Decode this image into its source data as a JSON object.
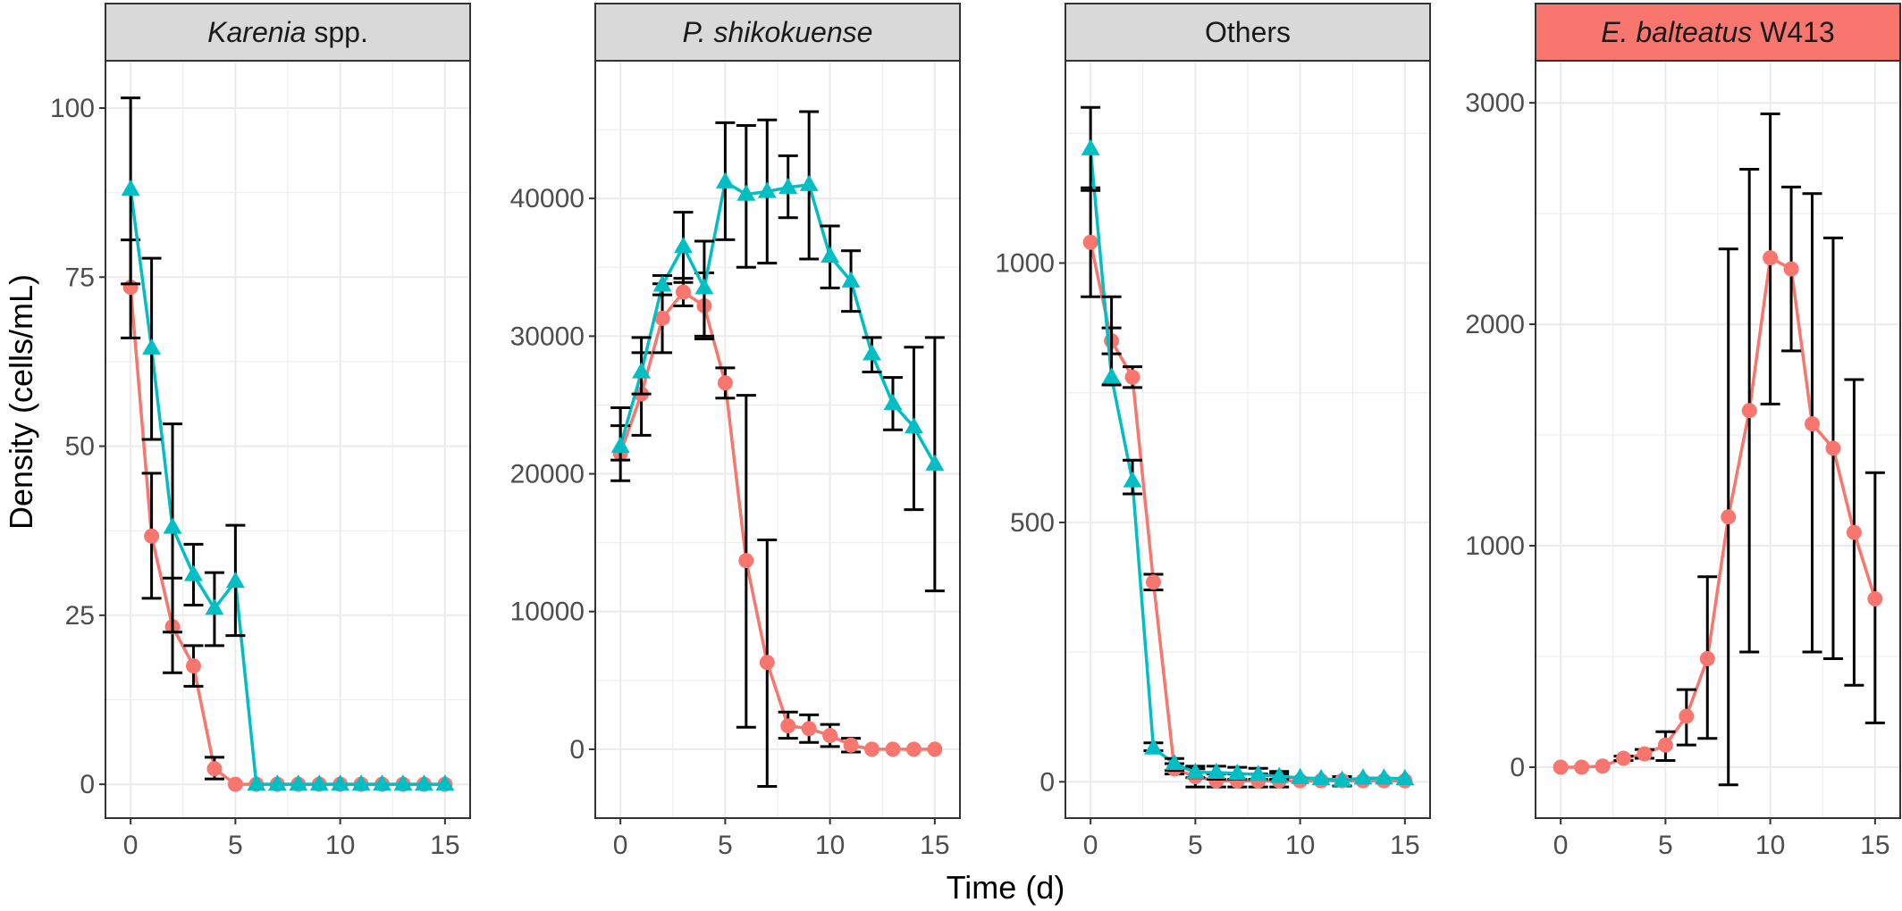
{
  "chart_data": {
    "type": "line",
    "xlabel": "Time (d)",
    "ylabel": "Density (cells/mL)",
    "colors": {
      "treatment": "#F8766D",
      "control": "#00BFC4",
      "error_bar": "#000000",
      "strip_default": "#D9D9D9",
      "strip_highlight": "#F8766D"
    },
    "panels": [
      {
        "strip_parts": [
          {
            "text": "Karenia",
            "italic": true
          },
          {
            "text": " spp.",
            "italic": false
          }
        ],
        "strip_fill": "#D9D9D9",
        "ylim": [
          -5,
          107
        ],
        "yticks": [
          0,
          25,
          50,
          75,
          100
        ],
        "xlim": [
          -1.2,
          16.2
        ],
        "xticks": [
          0,
          5,
          10,
          15
        ],
        "series": [
          {
            "key": "treatment",
            "x": [
              0,
              1,
              2,
              3,
              4,
              5,
              6,
              7,
              8,
              9,
              10,
              11,
              12,
              13,
              14,
              15
            ],
            "y": [
              73.5,
              36.7,
              23.3,
              17.5,
              2.3,
              0,
              0,
              0,
              0,
              0,
              0,
              0,
              0,
              0,
              0,
              0
            ],
            "err_low": [
              66,
              27.5,
              16.5,
              14.5,
              0.8,
              null,
              null,
              null,
              null,
              null,
              null,
              null,
              null,
              null,
              null,
              null
            ],
            "err_high": [
              80.5,
              46,
              30.5,
              20.5,
              4,
              null,
              null,
              null,
              null,
              null,
              null,
              null,
              null,
              null,
              null,
              null
            ]
          },
          {
            "key": "control",
            "x": [
              0,
              1,
              2,
              3,
              4,
              5,
              6,
              7,
              8,
              9,
              10,
              11,
              12,
              13,
              14,
              15
            ],
            "y": [
              88,
              64.5,
              38,
              31,
              26,
              30,
              0,
              0,
              0,
              0,
              0,
              0,
              0,
              0,
              0,
              0
            ],
            "err_low": [
              74,
              51,
              22.5,
              26.5,
              20.5,
              22,
              null,
              null,
              null,
              null,
              null,
              null,
              null,
              null,
              null,
              null
            ],
            "err_high": [
              101.5,
              77.8,
              53.3,
              35.5,
              31.3,
              38.3,
              null,
              null,
              null,
              null,
              null,
              null,
              null,
              null,
              null,
              null
            ]
          }
        ]
      },
      {
        "strip_parts": [
          {
            "text": "P.  shikokuense",
            "italic": true
          }
        ],
        "strip_fill": "#D9D9D9",
        "ylim": [
          -5000,
          50000
        ],
        "yticks": [
          0,
          10000,
          20000,
          30000,
          40000
        ],
        "xlim": [
          -1.2,
          16.2
        ],
        "xticks": [
          0,
          5,
          10,
          15
        ],
        "series": [
          {
            "key": "treatment",
            "x": [
              0,
              1,
              2,
              3,
              4,
              5,
              6,
              7,
              8,
              9,
              10,
              11,
              12,
              13,
              14,
              15
            ],
            "y": [
              21500,
              25800,
              31300,
              33200,
              32200,
              26600,
              13700,
              6300,
              1700,
              1500,
              1000,
              300,
              0,
              0,
              0,
              0
            ],
            "err_low": [
              19500,
              22800,
              28800,
              32200,
              29800,
              25500,
              1600,
              -2700,
              800,
              500,
              200,
              -200,
              null,
              null,
              null,
              null
            ],
            "err_high": [
              23500,
              28800,
              33800,
              34200,
              34600,
              27700,
              25700,
              15200,
              2700,
              2500,
              1800,
              800,
              null,
              null,
              null,
              null
            ]
          },
          {
            "key": "control",
            "x": [
              0,
              1,
              2,
              3,
              4,
              5,
              6,
              7,
              8,
              9,
              10,
              11,
              12,
              13,
              14,
              15
            ],
            "y": [
              22000,
              27400,
              33700,
              36500,
              33500,
              41200,
              40300,
              40500,
              40800,
              41000,
              35800,
              34000,
              28700,
              25100,
              23400,
              20700
            ],
            "err_low": [
              21000,
              25800,
              33000,
              33900,
              30000,
              37000,
              35000,
              35300,
              38600,
              35600,
              33500,
              31800,
              27400,
              23200,
              17400,
              11500
            ],
            "err_high": [
              24800,
              29900,
              34400,
              39000,
              36900,
              45500,
              45300,
              45700,
              43100,
              46300,
              38000,
              36200,
              29900,
              27000,
              29200,
              29900
            ]
          }
        ]
      },
      {
        "strip_parts": [
          {
            "text": "Others",
            "italic": false
          }
        ],
        "strip_fill": "#D9D9D9",
        "ylim": [
          -70,
          1390
        ],
        "yticks": [
          0,
          500,
          1000
        ],
        "xlim": [
          -1.2,
          16.2
        ],
        "xticks": [
          0,
          5,
          10,
          15
        ],
        "series": [
          {
            "key": "treatment",
            "x": [
              0,
              1,
              2,
              3,
              4,
              5,
              6,
              7,
              8,
              9,
              10,
              11,
              12,
              13,
              14,
              15
            ],
            "y": [
              1040,
              850,
              780,
              385,
              25,
              10,
              2,
              2,
              2,
              2,
              2,
              2,
              2,
              2,
              2,
              2
            ],
            "err_low": [
              935,
              825,
              760,
              370,
              15,
              -10,
              -10,
              -10,
              -10,
              -10,
              null,
              null,
              -8,
              null,
              null,
              null
            ],
            "err_high": [
              1145,
              875,
              800,
              400,
              35,
              25,
              15,
              15,
              15,
              15,
              null,
              null,
              10,
              null,
              null,
              null
            ]
          },
          {
            "key": "control",
            "x": [
              0,
              1,
              2,
              3,
              4,
              5,
              6,
              7,
              8,
              9,
              10,
              11,
              12,
              13,
              14,
              15
            ],
            "y": [
              1220,
              780,
              580,
              65,
              35,
              18,
              18,
              16,
              14,
              10,
              8,
              6,
              3,
              7,
              7,
              6
            ],
            "err_low": [
              1140,
              765,
              555,
              60,
              22,
              8,
              5,
              5,
              5,
              5,
              null,
              null,
              null,
              null,
              null,
              null
            ],
            "err_high": [
              1300,
              935,
              620,
              75,
              45,
              30,
              30,
              28,
              26,
              20,
              null,
              null,
              null,
              null,
              null,
              null
            ]
          }
        ]
      },
      {
        "strip_parts": [
          {
            "text": "E. balteatus",
            "italic": true
          },
          {
            "text": " W413",
            "italic": false
          }
        ],
        "strip_fill": "#F8766D",
        "ylim": [
          -230,
          3190
        ],
        "yticks": [
          0,
          1000,
          2000,
          3000
        ],
        "xlim": [
          -1.2,
          16.2
        ],
        "xticks": [
          0,
          5,
          10,
          15
        ],
        "series": [
          {
            "key": "treatment",
            "x": [
              0,
              1,
              2,
              3,
              4,
              5,
              6,
              7,
              8,
              9,
              10,
              11,
              12,
              13,
              14,
              15
            ],
            "y": [
              0,
              0,
              5,
              40,
              60,
              100,
              230,
              490,
              1130,
              1610,
              2300,
              2250,
              1550,
              1440,
              1060,
              760
            ],
            "err_low": [
              null,
              null,
              null,
              30,
              40,
              30,
              100,
              130,
              -80,
              520,
              1640,
              1880,
              520,
              490,
              370,
              200
            ],
            "err_high": [
              null,
              null,
              null,
              50,
              80,
              160,
              350,
              860,
              2340,
              2700,
              2950,
              2620,
              2590,
              2390,
              1750,
              1330
            ]
          }
        ]
      }
    ]
  }
}
